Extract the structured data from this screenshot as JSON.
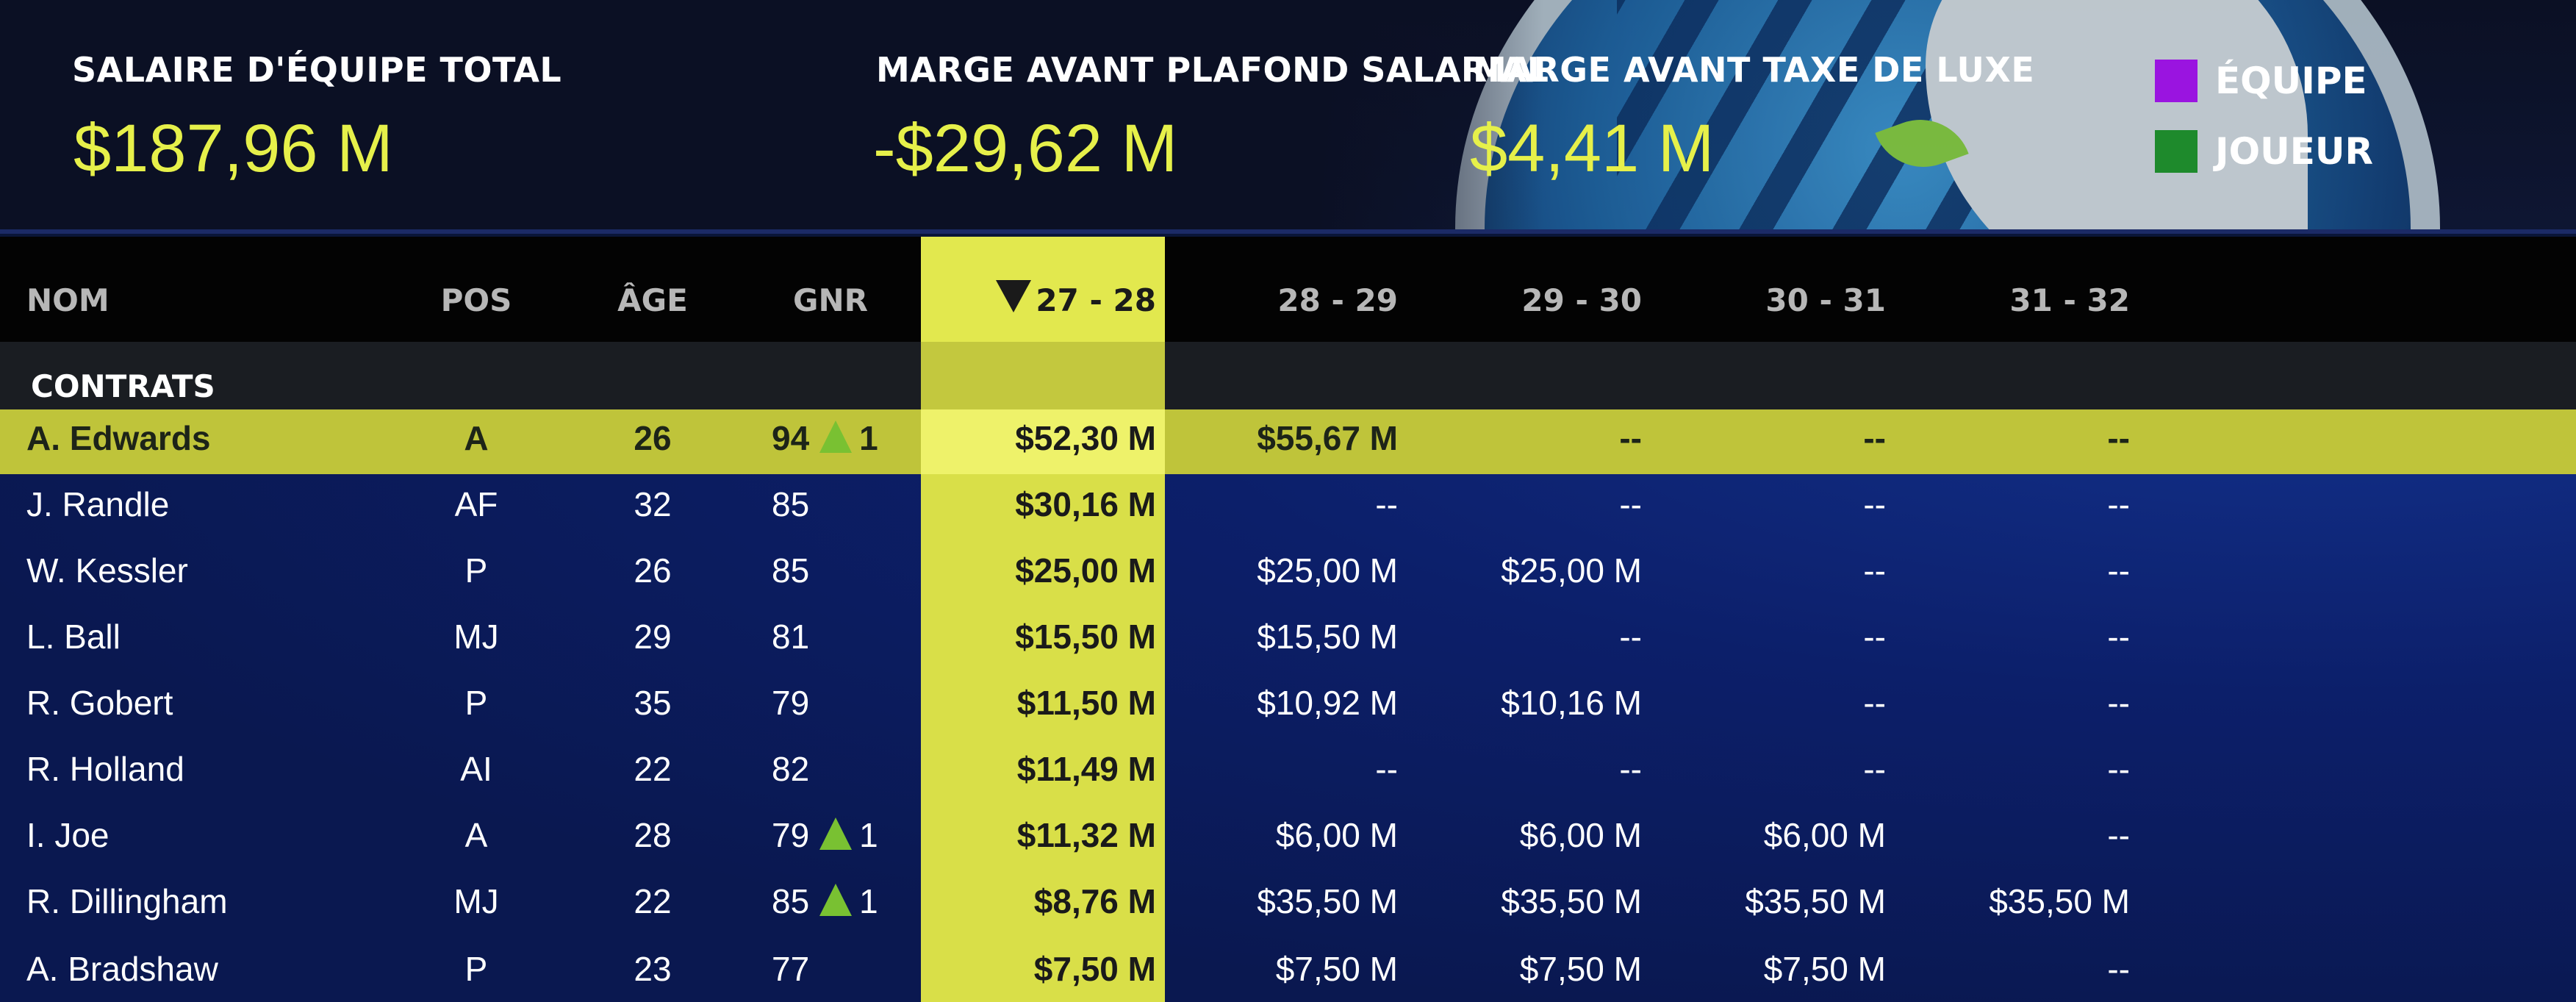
{
  "summary": {
    "total_payroll_label": "SALAIRE D'ÉQUIPE TOTAL",
    "total_payroll_value": "$187,96 M",
    "cap_room_label": "MARGE AVANT PLAFOND SALARIAL",
    "cap_room_value": "-$29,62 M",
    "tax_room_label": "MARGE AVANT TAXE DE LUXE",
    "tax_room_value": "$4,41 M"
  },
  "legend": [
    {
      "label": "ÉQUIPE",
      "color": "#9a14e0"
    },
    {
      "label": "JOUEUR",
      "color": "#1e8a2c"
    }
  ],
  "columns": {
    "name": "NOM",
    "pos": "POS",
    "age": "ÂGE",
    "gnr": "GNR",
    "y1": "27 - 28",
    "y2": "28 - 29",
    "y3": "29 - 30",
    "y4": "30 - 31",
    "y5": "31 - 32"
  },
  "section_label": "CONTRATS",
  "players": [
    {
      "name": "A. Edwards",
      "pos": "A",
      "age": "26",
      "gnr": "94",
      "delta": "1",
      "y1": "$52,30 M",
      "y2": "$55,67 M",
      "y3": "--",
      "y4": "--",
      "y5": "--"
    },
    {
      "name": "J. Randle",
      "pos": "AF",
      "age": "32",
      "gnr": "85",
      "delta": "",
      "y1": "$30,16 M",
      "y2": "--",
      "y3": "--",
      "y4": "--",
      "y5": "--"
    },
    {
      "name": "W. Kessler",
      "pos": "P",
      "age": "26",
      "gnr": "85",
      "delta": "",
      "y1": "$25,00 M",
      "y2": "$25,00 M",
      "y3": "$25,00 M",
      "y4": "--",
      "y5": "--"
    },
    {
      "name": "L. Ball",
      "pos": "MJ",
      "age": "29",
      "gnr": "81",
      "delta": "",
      "y1": "$15,50 M",
      "y2": "$15,50 M",
      "y3": "--",
      "y4": "--",
      "y5": "--"
    },
    {
      "name": "R. Gobert",
      "pos": "P",
      "age": "35",
      "gnr": "79",
      "delta": "",
      "y1": "$11,50 M",
      "y2": "$10,92 M",
      "y3": "$10,16 M",
      "y4": "--",
      "y5": "--"
    },
    {
      "name": "R. Holland",
      "pos": "AI",
      "age": "22",
      "gnr": "82",
      "delta": "",
      "y1": "$11,49 M",
      "y2": "--",
      "y3": "--",
      "y4": "--",
      "y5": "--"
    },
    {
      "name": "I. Joe",
      "pos": "A",
      "age": "28",
      "gnr": "79",
      "delta": "1",
      "y1": "$11,32 M",
      "y2": "$6,00 M",
      "y3": "$6,00 M",
      "y4": "$6,00 M",
      "y5": "--"
    },
    {
      "name": "R. Dillingham",
      "pos": "MJ",
      "age": "22",
      "gnr": "85",
      "delta": "1",
      "y1": "$8,76 M",
      "y2": "$35,50 M",
      "y3": "$35,50 M",
      "y4": "$35,50 M",
      "y5": "$35,50 M"
    },
    {
      "name": "A. Bradshaw",
      "pos": "P",
      "age": "23",
      "gnr": "77",
      "delta": "",
      "y1": "$7,50 M",
      "y2": "$7,50 M",
      "y3": "$7,50 M",
      "y4": "$7,50 M",
      "y5": "--"
    }
  ]
}
